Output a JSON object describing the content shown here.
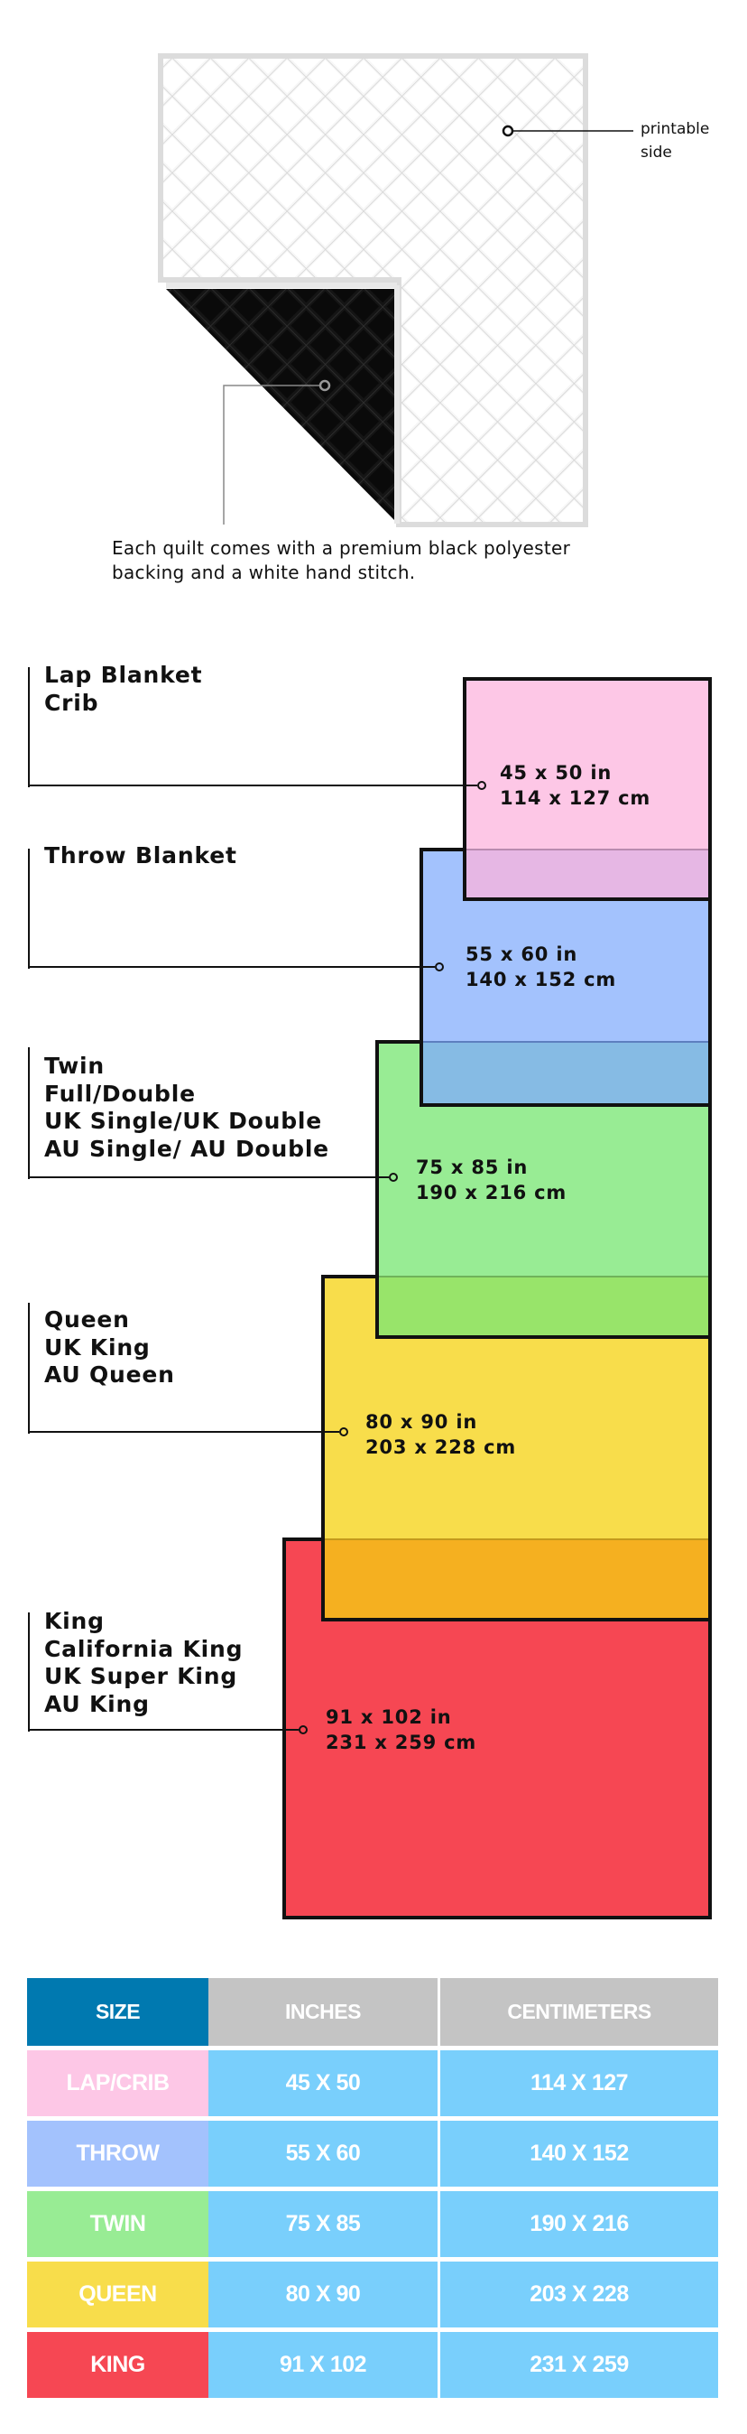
{
  "quilt": {
    "printable_label": [
      "printable",
      "side"
    ],
    "caption": [
      "Each quilt comes with a premium black polyester",
      "backing and a white hand stitch."
    ]
  },
  "sizes": [
    {
      "names": [
        "Lap Blanket",
        "Crib"
      ],
      "inches": "45 x 50 in",
      "cm": "114 x 127 cm",
      "color": "#fdc7e6",
      "overlap_color": "#e6b7e4"
    },
    {
      "names": [
        "Throw Blanket"
      ],
      "inches": "55 x 60 in",
      "cm": "140 x 152 cm",
      "color": "#a3c2fd",
      "overlap_color": "#86bbe4"
    },
    {
      "names": [
        "Twin",
        "Full/Double",
        "UK Single/UK Double",
        "AU Single/ AU Double"
      ],
      "inches": "75 x 85 in",
      "cm": "190 x 216 cm",
      "color": "#98ec94",
      "overlap_color": "#98e46a"
    },
    {
      "names": [
        "Queen",
        "UK King",
        "AU Queen"
      ],
      "inches": "80 x 90 in",
      "cm": "203 x 228 cm",
      "color": "#f8dd4b",
      "overlap_color": "#f5b020"
    },
    {
      "names": [
        "King",
        "California King",
        "UK Super King",
        "AU King"
      ],
      "inches": "91 x 102 in",
      "cm": "231 x 259 cm",
      "color": "#f64753"
    }
  ],
  "table": {
    "headers": [
      "SIZE",
      "INCHES",
      "CENTIMETERS"
    ],
    "header_colors": {
      "size": "#0079b0",
      "other": "#c4c4c4"
    },
    "cell_color": "#79cffc",
    "rows": [
      {
        "size": "LAP/CRIB",
        "inches": "45 X 50",
        "cm": "114 X 127",
        "color": "#fdc7e6"
      },
      {
        "size": "THROW",
        "inches": "55 X 60",
        "cm": "140 X 152",
        "color": "#a3c2fd"
      },
      {
        "size": "TWIN",
        "inches": "75 X 85",
        "cm": "190 X 216",
        "color": "#98ec94"
      },
      {
        "size": "QUEEN",
        "inches": "80 X 90",
        "cm": "203 X 228",
        "color": "#f8dd4b"
      },
      {
        "size": "KING",
        "inches": "91 X 102",
        "cm": "231 X 259",
        "color": "#f64753"
      }
    ]
  }
}
